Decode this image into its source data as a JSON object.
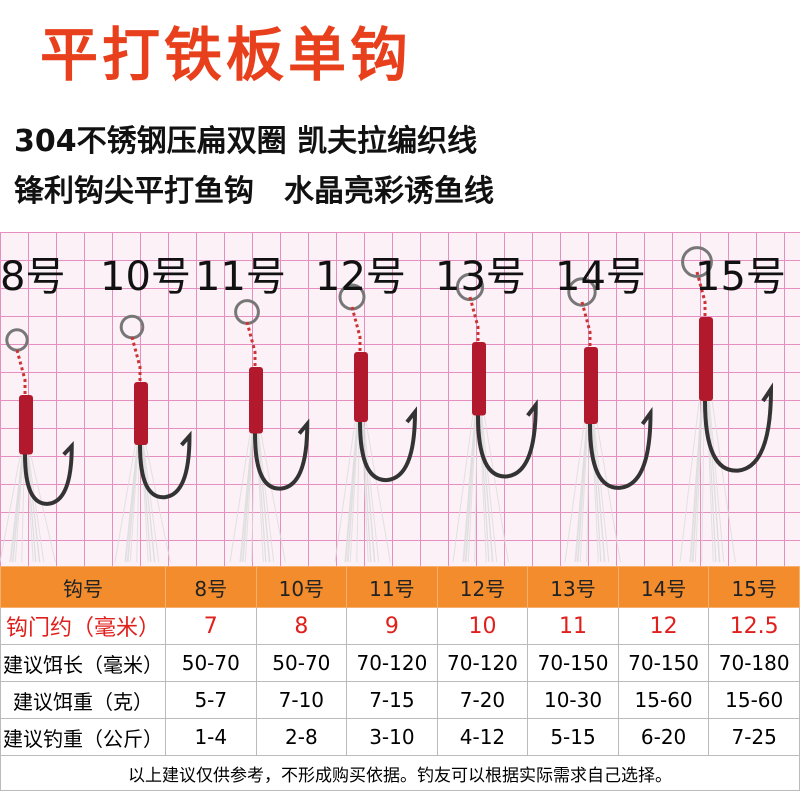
{
  "header": {
    "title": "平打铁板单钩",
    "features": [
      "304不锈钢压扁双圈 凯夫拉编织线",
      "锋利钩尖平打鱼钩　水晶亮彩诱鱼线"
    ]
  },
  "sizes": [
    "8号",
    "10号",
    "11号",
    "12号",
    "13号",
    "14号",
    "15号"
  ],
  "table": {
    "header": [
      "钩号",
      "8号",
      "10号",
      "11号",
      "12号",
      "13号",
      "14号",
      "15号"
    ],
    "rows": [
      [
        "钩门约（毫米）",
        "7",
        "8",
        "9",
        "10",
        "11",
        "12",
        "12.5"
      ],
      [
        "建议饵长（毫米）",
        "50-70",
        "50-70",
        "70-120",
        "70-120",
        "70-150",
        "70-150",
        "70-180"
      ],
      [
        "建议饵重（克）",
        "5-7",
        "7-10",
        "7-15",
        "7-20",
        "10-30",
        "15-60",
        "15-60"
      ],
      [
        "建议钓重（公斤）",
        "1-4",
        "2-8",
        "3-10",
        "4-12",
        "5-15",
        "6-20",
        "7-25"
      ]
    ],
    "footnote": "以上建议仅供参考，不形成购买依据。钓友可以根据实际需求自己选择。"
  }
}
